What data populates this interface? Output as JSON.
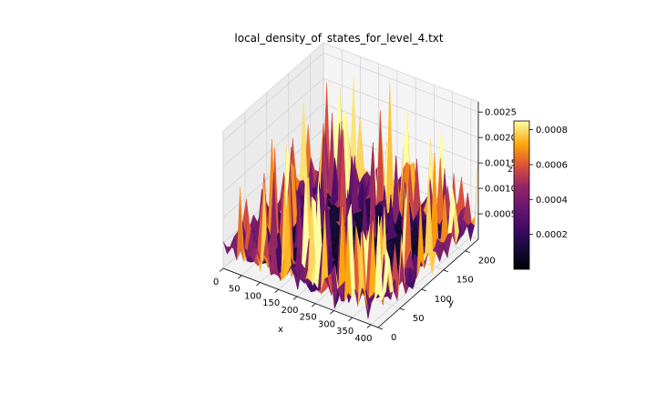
{
  "chart_data": {
    "type": "surface3d",
    "title": "local_density_of_states_for_level_4.txt",
    "xlabel": "x",
    "ylabel": "y",
    "zlabel": "z",
    "xlim": [
      0,
      420
    ],
    "ylim": [
      0,
      230
    ],
    "zlim": [
      0,
      0.0027
    ],
    "xticks": [
      0,
      50,
      100,
      150,
      200,
      250,
      300,
      350,
      400
    ],
    "xtick_labels": [
      "0",
      "50",
      "100",
      "150",
      "200",
      "250",
      "300",
      "350",
      "400"
    ],
    "yticks": [
      0,
      50,
      100,
      150,
      200
    ],
    "ytick_labels": [
      "0",
      "50",
      "100",
      "150",
      "200"
    ],
    "zticks": [
      0.0005,
      0.001,
      0.0015,
      0.002,
      0.0025
    ],
    "ztick_labels": [
      "0.0005",
      "0.0010",
      "0.0015",
      "0.0020",
      "0.0025"
    ],
    "colormap": "inferno",
    "colorbar": {
      "range": [
        0,
        0.00085
      ],
      "ticks": [
        0.0002,
        0.0004,
        0.0006,
        0.0008
      ],
      "tick_labels": [
        "0.0002",
        "0.0004",
        "0.0006",
        "0.0008"
      ]
    },
    "grid": true,
    "background_peak_samples": [
      {
        "x": 55,
        "y": 215,
        "z": 0.0012
      },
      {
        "x": 110,
        "y": 225,
        "z": 0.0016
      },
      {
        "x": 165,
        "y": 220,
        "z": 0.0019
      },
      {
        "x": 200,
        "y": 215,
        "z": 0.0026
      },
      {
        "x": 240,
        "y": 225,
        "z": 0.0021
      },
      {
        "x": 300,
        "y": 220,
        "z": 0.0017
      },
      {
        "x": 340,
        "y": 210,
        "z": 0.0015
      },
      {
        "x": 375,
        "y": 215,
        "z": 0.0013
      },
      {
        "x": 15,
        "y": 120,
        "z": 0.001
      },
      {
        "x": 410,
        "y": 120,
        "z": 0.002
      },
      {
        "x": 410,
        "y": 60,
        "z": 0.0011
      }
    ],
    "foreground_peak_samples": [
      {
        "x": 55,
        "y": 15,
        "z": 0.0008
      },
      {
        "x": 100,
        "y": 10,
        "z": 0.0019
      },
      {
        "x": 150,
        "y": 20,
        "z": 0.002
      },
      {
        "x": 195,
        "y": 25,
        "z": 0.0021
      },
      {
        "x": 235,
        "y": 15,
        "z": 0.0022
      },
      {
        "x": 265,
        "y": 10,
        "z": 0.0018
      },
      {
        "x": 300,
        "y": 20,
        "z": 0.0019
      },
      {
        "x": 345,
        "y": 25,
        "z": 0.0015
      },
      {
        "x": 385,
        "y": 45,
        "z": 0.001
      }
    ]
  }
}
